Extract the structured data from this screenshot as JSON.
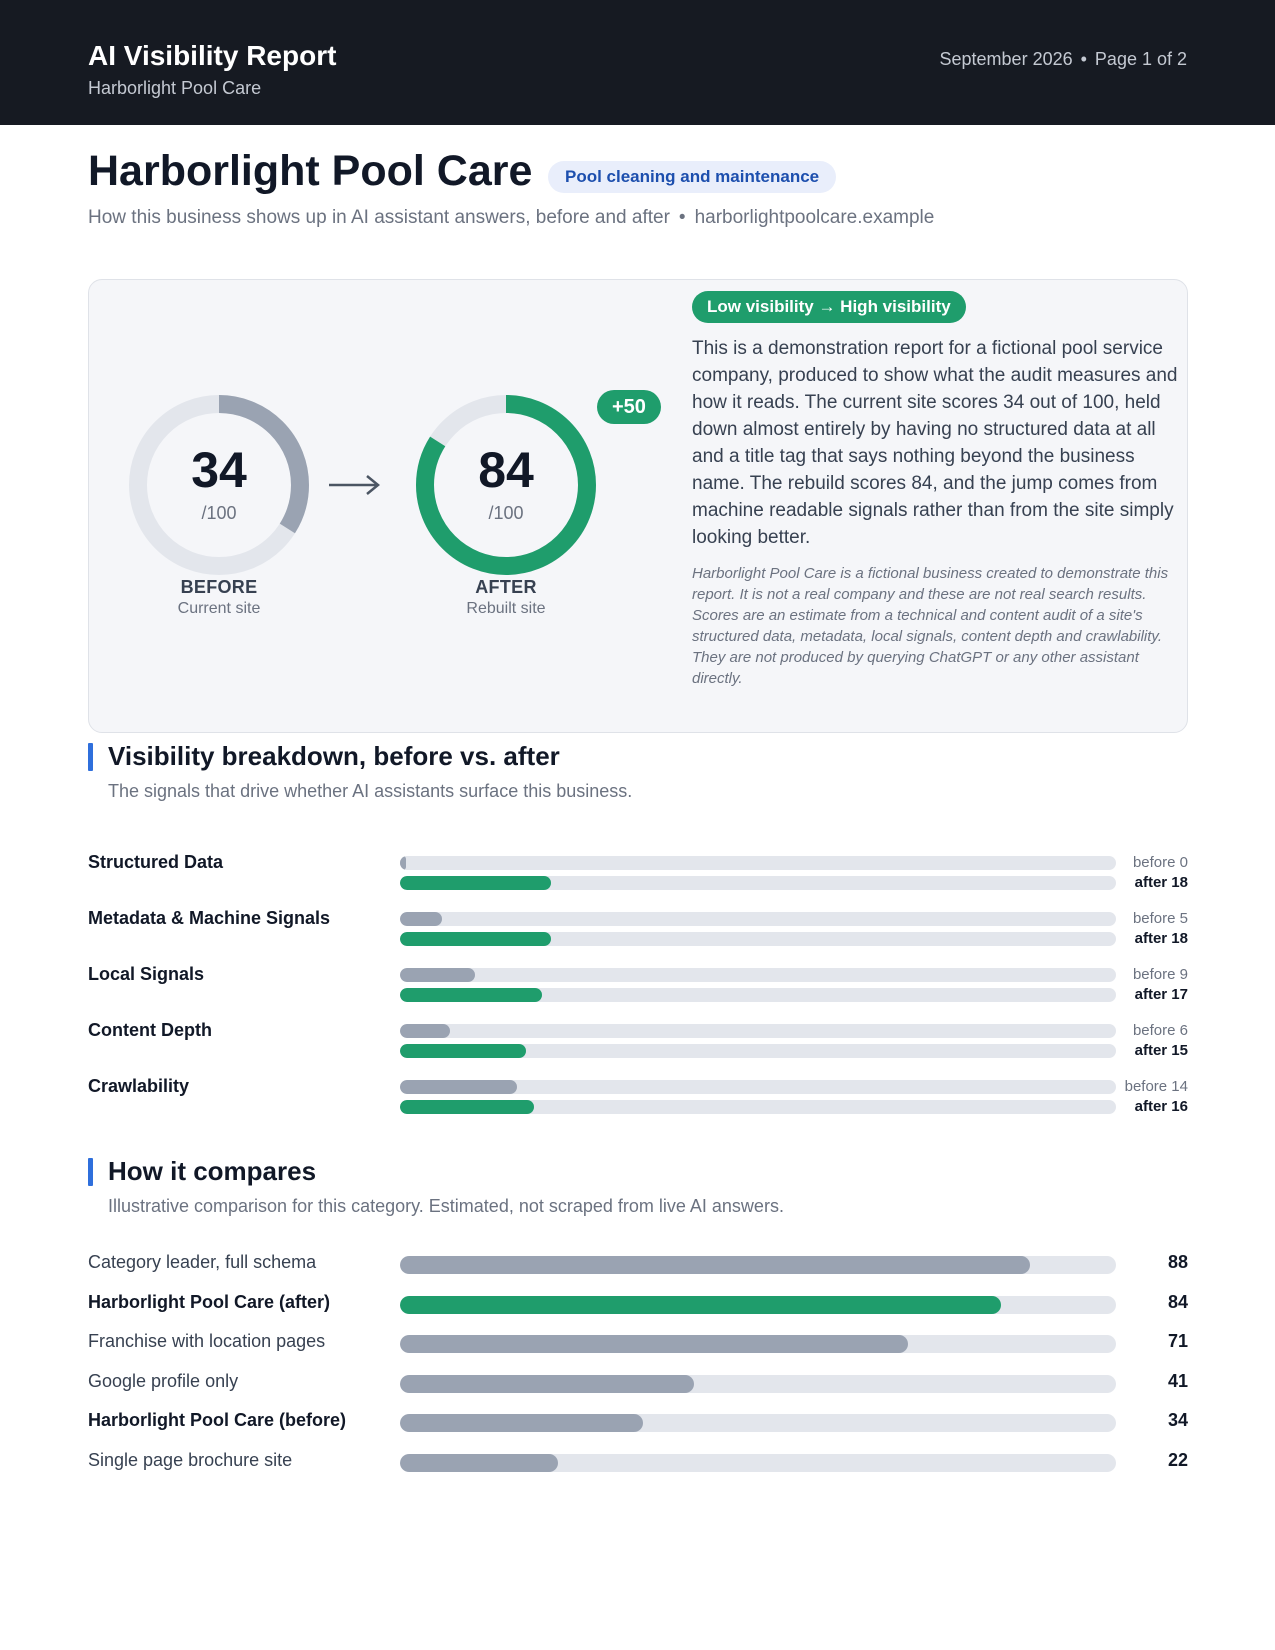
{
  "header": {
    "title": "AI Visibility Report",
    "subtitle": "Harborlight Pool Care",
    "date": "September 2026",
    "separator": "•",
    "page": "Page 1 of 2"
  },
  "business": {
    "name": "Harborlight Pool Care",
    "category": "Pool cleaning and maintenance",
    "tagline": "How this business shows up in AI assistant answers, before and after",
    "separator": "•",
    "domain": "harborlightpoolcare.example"
  },
  "scores": {
    "before": {
      "value": "34",
      "out_of": "/100",
      "label": "BEFORE",
      "caption": "Current site",
      "fraction": 0.34
    },
    "after": {
      "value": "84",
      "out_of": "/100",
      "label": "AFTER",
      "caption": "Rebuilt site",
      "fraction": 0.84
    },
    "delta": "+50",
    "visibility_change": "Low visibility → High visibility",
    "summary": "This is a demonstration report for a fictional pool service company, produced to show what the audit measures and how it reads. The current site scores 34 out of 100, held down almost entirely by having no structured data at all and a title tag that says nothing beyond the business name. The rebuild scores 84, and the jump comes from machine readable signals rather than from the site simply looking better.",
    "disclaimer": "Harborlight Pool Care is a fictional business created to demonstrate this report. It is not a real company and these are not real search results. Scores are an estimate from a technical and content audit of a site's structured data, metadata, local signals, content depth and crawlability. They are not produced by querying ChatGPT or any other assistant directly."
  },
  "breakdown": {
    "title": "Visibility breakdown, before vs. after",
    "subtitle": "The signals that drive whether AI assistants surface this business.",
    "max": 100,
    "rows": [
      {
        "label": "Structured Data",
        "before": 0,
        "after": 18,
        "before_text": "before 0",
        "after_text": "after 18"
      },
      {
        "label": "Metadata & Machine Signals",
        "before": 5,
        "after": 18,
        "before_text": "before 5",
        "after_text": "after 18"
      },
      {
        "label": "Local Signals",
        "before": 9,
        "after": 17,
        "before_text": "before 9",
        "after_text": "after 17"
      },
      {
        "label": "Content Depth",
        "before": 6,
        "after": 15,
        "before_text": "before 6",
        "after_text": "after 15"
      },
      {
        "label": "Crawlability",
        "before": 14,
        "after": 16,
        "before_text": "before 14",
        "after_text": "after 16"
      }
    ]
  },
  "comparison": {
    "title": "How it compares",
    "subtitle": "Illustrative comparison for this category. Estimated, not scraped from live AI answers.",
    "max": 100,
    "rows": [
      {
        "label": "Category leader, full schema",
        "value": 88,
        "highlight": false,
        "bold": false
      },
      {
        "label": "Harborlight Pool Care (after)",
        "value": 84,
        "highlight": true,
        "bold": true
      },
      {
        "label": "Franchise with location pages",
        "value": 71,
        "highlight": false,
        "bold": false
      },
      {
        "label": "Google profile only",
        "value": 41,
        "highlight": false,
        "bold": false
      },
      {
        "label": "Harborlight Pool Care (before)",
        "value": 34,
        "highlight": false,
        "bold": true
      },
      {
        "label": "Single page brochure site",
        "value": 22,
        "highlight": false,
        "bold": false
      }
    ]
  },
  "colors": {
    "accent_green": "#1f9d6c",
    "bar_grey": "#9aa3b2",
    "track": "#e3e6ec",
    "section_accent": "#2f6fdc",
    "header_bg": "#161a22"
  }
}
